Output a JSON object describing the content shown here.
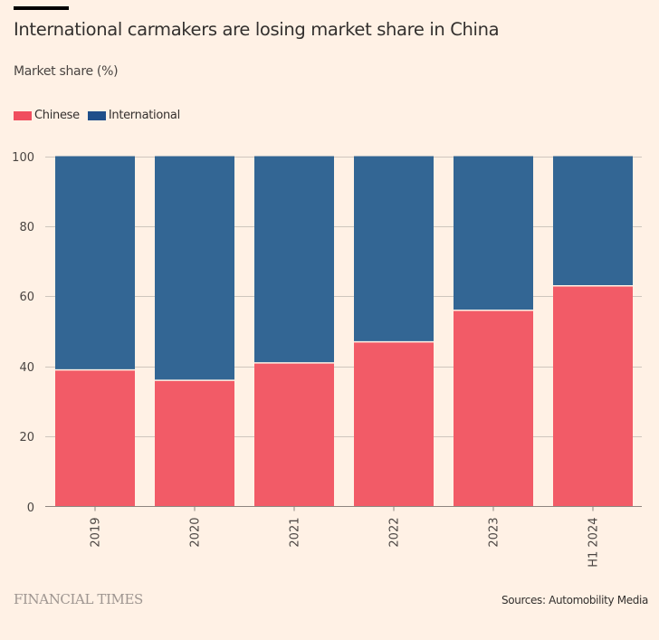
{
  "header": {
    "title": "International carmakers are losing market share in China",
    "subtitle": "Market share (%)"
  },
  "legend": [
    {
      "label": "Chinese",
      "color": "#F04E5E"
    },
    {
      "label": "International",
      "color": "#1F4F8A"
    }
  ],
  "footer": {
    "brand": "FINANCIAL TIMES",
    "source": "Sources: Automobility Media"
  },
  "chart_data": {
    "type": "bar",
    "stacked": true,
    "title": "International carmakers are losing market share in China",
    "subtitle": "Market share (%)",
    "xlabel": "",
    "ylabel": "",
    "categories": [
      "2019",
      "2020",
      "2021",
      "2022",
      "2023",
      "H1 2024"
    ],
    "series": [
      {
        "name": "Chinese",
        "color": "#F25B67",
        "values": [
          39,
          36,
          41,
          47,
          56,
          63
        ]
      },
      {
        "name": "International",
        "color": "#336694",
        "values": [
          61,
          64,
          59,
          53,
          44,
          37
        ]
      }
    ],
    "ylim": [
      0,
      100
    ],
    "yticks": [
      0,
      20,
      40,
      60,
      80,
      100
    ],
    "grid": true,
    "legend_position": "top-left",
    "x_label_rotation": "vertical"
  }
}
